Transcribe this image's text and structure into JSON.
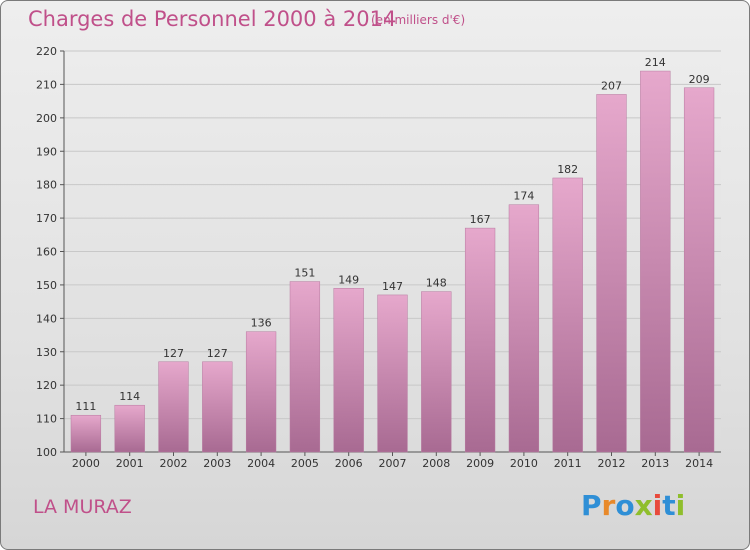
{
  "header": {
    "title": "Charges de Personnel 2000 à 2014",
    "subtitle": "(en milliers d'€)"
  },
  "footer": {
    "commune": "LA MURAZ",
    "logo_text": "Proxiti"
  },
  "colors": {
    "title": "#c0508a",
    "bar_top": "#e6a8cc",
    "bar_bottom": "#a86a92",
    "logo": [
      "#2f8fd6",
      "#e8892a",
      "#2f8fd6",
      "#8fbe2c",
      "#e84a3c",
      "#2f8fd6",
      "#8fbe2c"
    ]
  },
  "chart_data": {
    "type": "bar",
    "title": "Charges de Personnel 2000 à 2014",
    "subtitle": "(en milliers d'€)",
    "categories": [
      "2000",
      "2001",
      "2002",
      "2003",
      "2004",
      "2005",
      "2006",
      "2007",
      "2008",
      "2009",
      "2010",
      "2011",
      "2012",
      "2013",
      "2014"
    ],
    "values": [
      111,
      114,
      127,
      127,
      136,
      151,
      149,
      147,
      148,
      167,
      174,
      182,
      207,
      214,
      209
    ],
    "yticks": [
      100,
      110,
      120,
      130,
      140,
      150,
      160,
      170,
      180,
      190,
      200,
      210,
      220
    ],
    "ylim": [
      100,
      220
    ],
    "grid": true,
    "legend": "none"
  }
}
